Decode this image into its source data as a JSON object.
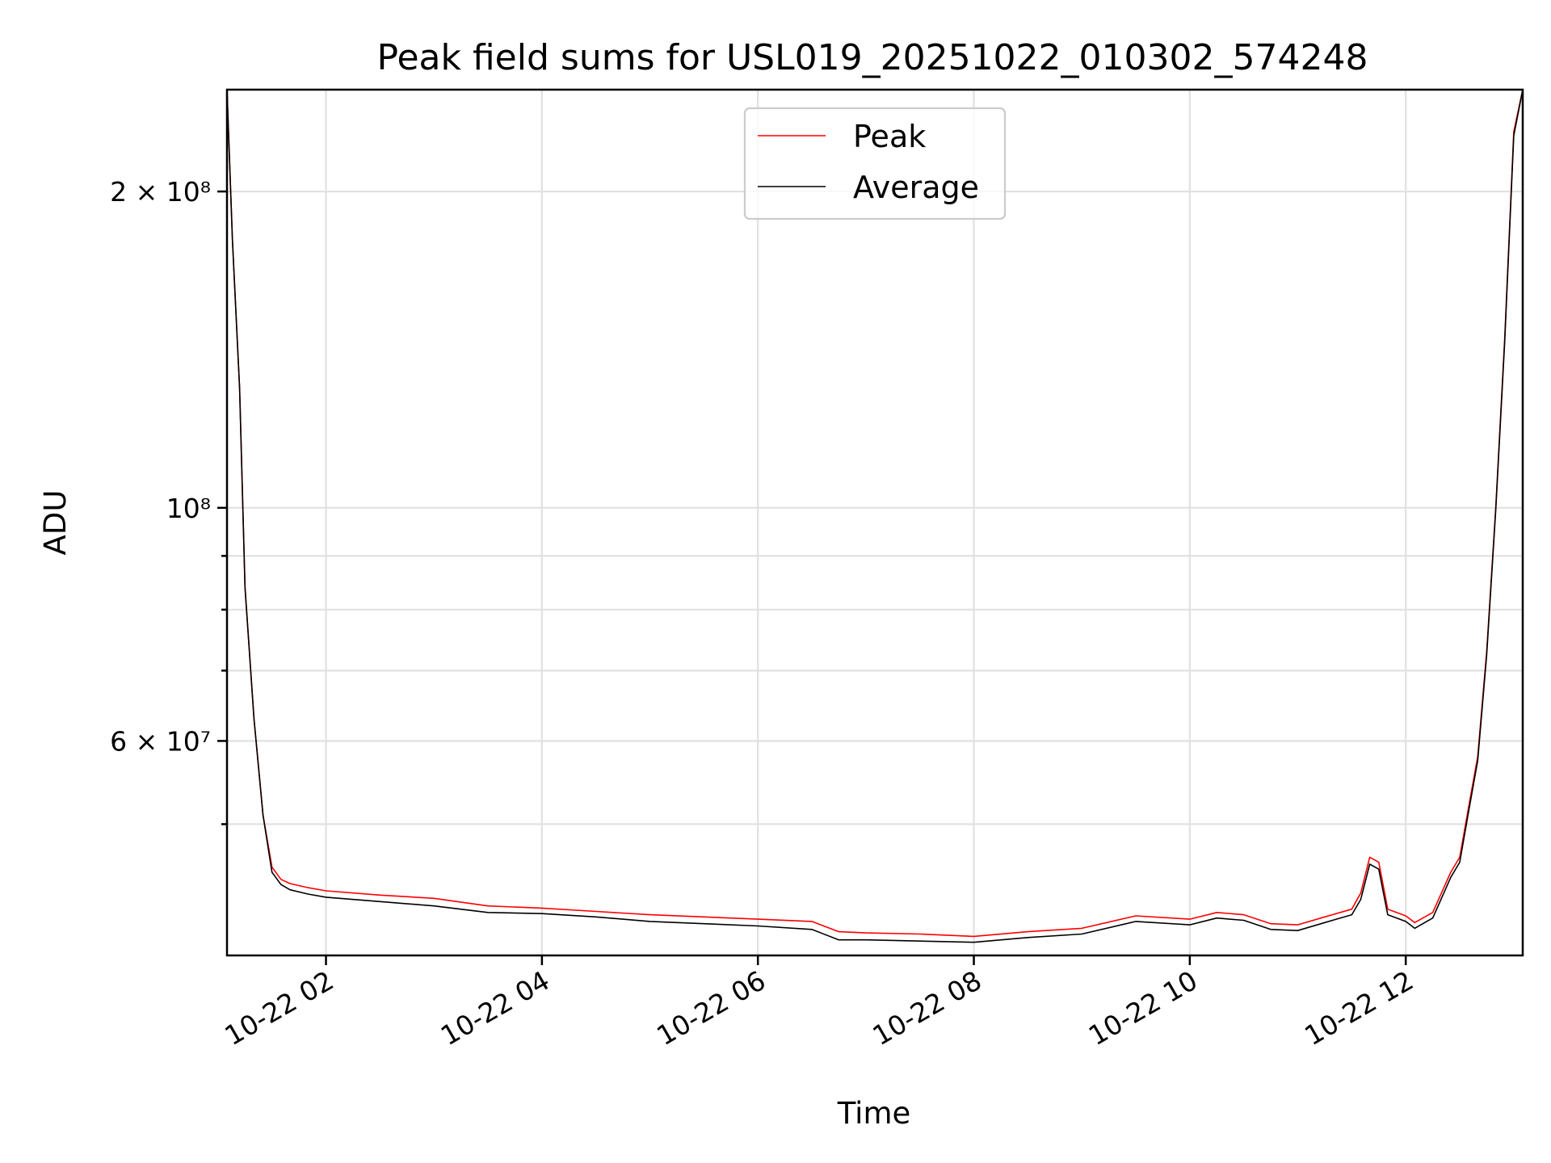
{
  "chart_data": {
    "type": "line",
    "title": "Peak field sums for USL019_20251022_010302_574248",
    "xlabel": "Time",
    "ylabel": "ADU",
    "y_scale": "log",
    "ylim": [
      37500000,
      250000000
    ],
    "xlim": [
      "2025-10-22 01:05",
      "2025-10-22 13:05"
    ],
    "x_ticks": [
      "2025-10-22 02:00",
      "2025-10-22 04:00",
      "2025-10-22 06:00",
      "2025-10-22 08:00",
      "2025-10-22 10:00",
      "2025-10-22 12:00"
    ],
    "x_tick_labels": [
      "10-22 02",
      "10-22 04",
      "10-22 06",
      "10-22 08",
      "10-22 10",
      "10-22 12"
    ],
    "y_major_ticks": [
      {
        "value": 200000000,
        "label": "2 × 10⁸"
      },
      {
        "value": 100000000,
        "label": "10⁸"
      },
      {
        "value": 60000000,
        "label": "6 × 10⁷"
      }
    ],
    "y_minor_ticks": [
      50000000,
      70000000,
      80000000,
      90000000
    ],
    "grid": true,
    "legend_position": "upper center",
    "x": [
      "2025-10-22 01:05",
      "2025-10-22 01:08",
      "2025-10-22 01:12",
      "2025-10-22 01:15",
      "2025-10-22 01:20",
      "2025-10-22 01:25",
      "2025-10-22 01:30",
      "2025-10-22 01:35",
      "2025-10-22 01:40",
      "2025-10-22 01:50",
      "2025-10-22 02:00",
      "2025-10-22 02:30",
      "2025-10-22 03:00",
      "2025-10-22 03:30",
      "2025-10-22 04:00",
      "2025-10-22 04:30",
      "2025-10-22 05:00",
      "2025-10-22 05:30",
      "2025-10-22 06:00",
      "2025-10-22 06:30",
      "2025-10-22 06:45",
      "2025-10-22 07:00",
      "2025-10-22 07:30",
      "2025-10-22 08:00",
      "2025-10-22 08:30",
      "2025-10-22 09:00",
      "2025-10-22 09:30",
      "2025-10-22 10:00",
      "2025-10-22 10:15",
      "2025-10-22 10:30",
      "2025-10-22 10:45",
      "2025-10-22 11:00",
      "2025-10-22 11:15",
      "2025-10-22 11:30",
      "2025-10-22 11:35",
      "2025-10-22 11:40",
      "2025-10-22 11:45",
      "2025-10-22 11:50",
      "2025-10-22 12:00",
      "2025-10-22 12:05",
      "2025-10-22 12:15",
      "2025-10-22 12:25",
      "2025-10-22 12:30",
      "2025-10-22 12:35",
      "2025-10-22 12:40",
      "2025-10-22 12:45",
      "2025-10-22 12:50",
      "2025-10-22 12:55",
      "2025-10-22 13:00",
      "2025-10-22 13:05"
    ],
    "series": [
      {
        "name": "Peak",
        "color": "#ff0000",
        "values": [
          250000000,
          180000000,
          130000000,
          84000000,
          63000000,
          51000000,
          45500000,
          44300000,
          43900000,
          43500000,
          43200000,
          42800000,
          42500000,
          41800000,
          41600000,
          41300000,
          41000000,
          40800000,
          40600000,
          40400000,
          39500000,
          39400000,
          39300000,
          39100000,
          39500000,
          39800000,
          40900000,
          40600000,
          41200000,
          41000000,
          40200000,
          40100000,
          40800000,
          41500000,
          43000000,
          46500000,
          46000000,
          41500000,
          40900000,
          40300000,
          41200000,
          45000000,
          46500000,
          52000000,
          58000000,
          73000000,
          100000000,
          145000000,
          228000000,
          250000000
        ]
      },
      {
        "name": "Average",
        "color": "#000000",
        "values": [
          250000000,
          180000000,
          130000000,
          84000000,
          63000000,
          51000000,
          45000000,
          43800000,
          43300000,
          42900000,
          42600000,
          42200000,
          41800000,
          41200000,
          41100000,
          40800000,
          40400000,
          40200000,
          40000000,
          39700000,
          38800000,
          38800000,
          38700000,
          38600000,
          39000000,
          39300000,
          40400000,
          40100000,
          40700000,
          40500000,
          39700000,
          39600000,
          40300000,
          41000000,
          42400000,
          45800000,
          45300000,
          41000000,
          40400000,
          39800000,
          40700000,
          44500000,
          46000000,
          51500000,
          57500000,
          72500000,
          99500000,
          144000000,
          226000000,
          250000000
        ]
      }
    ]
  }
}
